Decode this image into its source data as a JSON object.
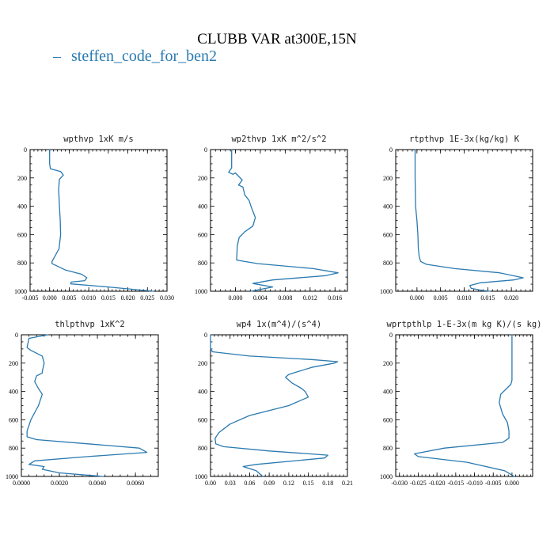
{
  "figure": {
    "title": "CLUBB VAR at300E,15N",
    "legend": [
      {
        "name": "steffen_code_for_ben2",
        "color": "#2a7ab0"
      }
    ],
    "line_color": "#2a7ab0"
  },
  "chart_data": [
    {
      "type": "line",
      "title": "wpthvp  1xK m/s",
      "xlim": [
        -0.005,
        0.03
      ],
      "xticks": [
        -0.005,
        0.0,
        0.005,
        0.01,
        0.015,
        0.02,
        0.025,
        0.03
      ],
      "xtick_labels": [
        "-0.005",
        "0.000",
        "0.005",
        "0.010",
        "0.015",
        "0.020",
        "0.025",
        "0.030"
      ],
      "ylim": [
        1000,
        0
      ],
      "yticks": [
        0,
        200,
        400,
        600,
        800,
        1000
      ],
      "ytick_labels": [
        "0",
        "200",
        "400",
        "600",
        "800",
        "1000"
      ],
      "series": [
        {
          "x": [
            0.0,
            0.0,
            0.0002,
            0.0028,
            0.0035,
            0.0025,
            0.0023,
            0.0025,
            0.0027,
            0.0028,
            0.0024,
            0.0006,
            0.0006,
            0.004,
            0.0082,
            0.0095,
            0.009,
            0.0055,
            0.0054,
            0.015,
            0.0265
          ],
          "y": [
            0,
            100,
            135,
            155,
            180,
            210,
            280,
            400,
            500,
            600,
            700,
            790,
            805,
            850,
            880,
            905,
            925,
            935,
            948,
            970,
            1000
          ]
        }
      ]
    },
    {
      "type": "line",
      "title": "wp2thvp  1xK m^2/s^2",
      "xlim": [
        -0.004,
        0.018
      ],
      "xticks": [
        0.0,
        0.004,
        0.008,
        0.012,
        0.016
      ],
      "xtick_labels": [
        "0.000",
        "0.004",
        "0.008",
        "0.012",
        "0.016"
      ],
      "ylim": [
        1000,
        0
      ],
      "yticks": [
        0,
        200,
        400,
        600,
        800,
        1000
      ],
      "ytick_labels": [
        "0",
        "200",
        "400",
        "600",
        "800",
        "1000"
      ],
      "series": [
        {
          "x": [
            -0.0006,
            -0.0006,
            -0.0011,
            -0.0004,
            0.0,
            0.0011,
            0.0005,
            0.0012,
            0.0015,
            0.0022,
            0.0025,
            0.0032,
            0.0028,
            0.0015,
            0.0006,
            0.0003,
            0.0002,
            0.0036,
            0.0125,
            0.0165,
            0.0145,
            0.006,
            0.0028,
            0.006,
            0.0025
          ],
          "y": [
            0,
            130,
            160,
            175,
            165,
            215,
            250,
            265,
            320,
            360,
            400,
            480,
            540,
            580,
            620,
            680,
            780,
            805,
            840,
            870,
            890,
            920,
            945,
            970,
            1000
          ]
        }
      ]
    },
    {
      "type": "line",
      "title": "rtpthvp  1E-3x(kg/kg) K",
      "xlim": [
        -0.0045,
        0.0245
      ],
      "xticks": [
        0.0,
        0.005,
        0.01,
        0.015,
        0.02
      ],
      "xtick_labels": [
        "0.000",
        "0.005",
        "0.010",
        "0.015",
        "0.020"
      ],
      "ylim": [
        1000,
        0
      ],
      "yticks": [
        0,
        200,
        400,
        600,
        800,
        1000
      ],
      "ytick_labels": [
        "0",
        "200",
        "400",
        "600",
        "800",
        "1000"
      ],
      "series": [
        {
          "x": [
            -0.0004,
            -0.0004,
            -0.0003,
            0.0,
            0.0002,
            0.0003,
            0.0005,
            0.0008,
            0.002,
            0.008,
            0.0175,
            0.0225,
            0.0205,
            0.0135,
            0.0112,
            0.0115,
            0.014,
            0.0155
          ],
          "y": [
            0,
            200,
            400,
            500,
            600,
            700,
            760,
            790,
            810,
            840,
            870,
            905,
            920,
            940,
            960,
            980,
            995,
            1000
          ]
        }
      ]
    },
    {
      "type": "line",
      "title": "thlpthvp  1xK^2",
      "xlim": [
        0.0,
        0.0072
      ],
      "xticks": [
        0.0,
        0.002,
        0.004,
        0.006
      ],
      "xtick_labels": [
        "0.0000",
        "0.0020",
        "0.0040",
        "0.0060"
      ],
      "ylim": [
        1000,
        0
      ],
      "yticks": [
        0,
        200,
        400,
        600,
        800,
        1000
      ],
      "ytick_labels": [
        "0",
        "200",
        "400",
        "600",
        "800",
        "1000"
      ],
      "series": [
        {
          "x": [
            0.0014,
            0.0004,
            0.0003,
            0.0005,
            0.0011,
            0.0012,
            0.0011,
            0.0011,
            0.0008,
            0.0007,
            0.0009,
            0.0011,
            0.0009,
            0.0005,
            0.0003,
            0.0003,
            0.0008,
            0.0035,
            0.0062,
            0.0066,
            0.0035,
            0.0007,
            0.0004,
            0.0012,
            0.0011,
            0.002,
            0.0043
          ],
          "y": [
            0,
            25,
            90,
            110,
            150,
            200,
            260,
            270,
            290,
            330,
            380,
            420,
            500,
            600,
            680,
            720,
            740,
            770,
            800,
            830,
            860,
            890,
            915,
            930,
            950,
            975,
            1000
          ]
        }
      ]
    },
    {
      "type": "line",
      "title": "wp4  1x(m^4)/(s^4)",
      "xlim": [
        0.0,
        0.21
      ],
      "xticks": [
        0.0,
        0.03,
        0.06,
        0.09,
        0.12,
        0.15,
        0.18,
        0.21
      ],
      "xtick_labels": [
        "0.00",
        "0.03",
        "0.06",
        "0.09",
        "0.12",
        "0.15",
        "0.18",
        "0.21"
      ],
      "ylim": [
        1000,
        0
      ],
      "yticks": [
        0,
        200,
        400,
        600,
        800,
        1000
      ],
      "ytick_labels": [
        "0",
        "200",
        "400",
        "600",
        "800",
        "1000"
      ],
      "series": [
        {
          "x": [
            0.0,
            0.0,
            0.003,
            0.06,
            0.155,
            0.195,
            0.19,
            0.155,
            0.12,
            0.115,
            0.125,
            0.14,
            0.145,
            0.15,
            0.14,
            0.12,
            0.06,
            0.03,
            0.013,
            0.007,
            0.008,
            0.02,
            0.09,
            0.18,
            0.175,
            0.07,
            0.05,
            0.07,
            0.08
          ],
          "y": [
            0,
            100,
            120,
            150,
            175,
            190,
            200,
            230,
            280,
            300,
            340,
            380,
            400,
            440,
            460,
            500,
            570,
            630,
            690,
            730,
            770,
            790,
            820,
            850,
            870,
            915,
            930,
            960,
            1000
          ]
        }
      ]
    },
    {
      "type": "line",
      "title": "wprtpthlp  1-E-3x(m kg K)/(s kg)",
      "xlim": [
        -0.031,
        0.0055
      ],
      "xticks": [
        -0.03,
        -0.025,
        -0.02,
        -0.015,
        -0.01,
        -0.005,
        0.0
      ],
      "xtick_labels": [
        "-0.030",
        "-0.025",
        "-0.020",
        "-0.015",
        "-0.010",
        "-0.005",
        "0.000"
      ],
      "ylim": [
        1000,
        0
      ],
      "yticks": [
        0,
        200,
        400,
        600,
        800,
        1000
      ],
      "ytick_labels": [
        "0",
        "200",
        "400",
        "600",
        "800",
        "1000"
      ],
      "series": [
        {
          "x": [
            0.0,
            0.0,
            0.0,
            -0.0003,
            -0.003,
            -0.0034,
            -0.0025,
            -0.0012,
            -0.0008,
            -0.0008,
            -0.0025,
            -0.018,
            -0.026,
            -0.025,
            -0.012,
            -0.002,
            0.0,
            0.0005
          ],
          "y": [
            0,
            200,
            320,
            350,
            420,
            480,
            560,
            620,
            680,
            730,
            760,
            800,
            840,
            860,
            900,
            960,
            990,
            1000
          ]
        }
      ]
    }
  ]
}
